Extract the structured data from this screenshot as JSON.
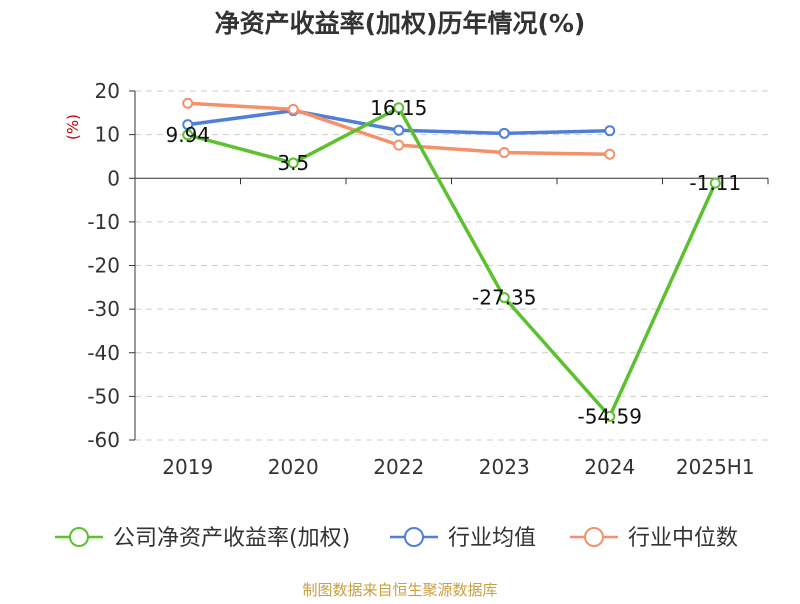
{
  "chart_data": {
    "type": "line",
    "title": "净资产收益率(加权)历年情况(%)",
    "ylabel": "(%)",
    "categories": [
      "2019",
      "2020",
      "2022",
      "2023",
      "2024",
      "2025H1"
    ],
    "y_ticks": [
      "20",
      "10",
      "0",
      "-10",
      "-20",
      "-30",
      "-40",
      "-50",
      "-60"
    ],
    "ylim": [
      -60,
      20
    ],
    "grid": true,
    "legend_position": "bottom",
    "series": [
      {
        "name": "公司净资产收益率(加权)",
        "color": "#5cc12e",
        "values": [
          9.94,
          3.5,
          16.15,
          -27.35,
          -54.59,
          -1.11
        ],
        "labels": [
          "9.94",
          "3.5",
          "16.15",
          "-27.35",
          "-54.59",
          "-1.11"
        ]
      },
      {
        "name": "行业均值",
        "color": "#4f7fd8",
        "values": [
          12.3,
          15.5,
          11.0,
          10.3,
          10.9,
          null
        ]
      },
      {
        "name": "行业中位数",
        "color": "#f4906a",
        "values": [
          17.2,
          15.8,
          7.6,
          5.9,
          5.5,
          null
        ]
      }
    ]
  },
  "source": "制图数据来自恒生聚源数据库",
  "colors": {
    "title": "#333333",
    "axis": "#333333",
    "ylabel": "#cc0000",
    "source": "#c8a040",
    "grid": "#cccccc"
  }
}
